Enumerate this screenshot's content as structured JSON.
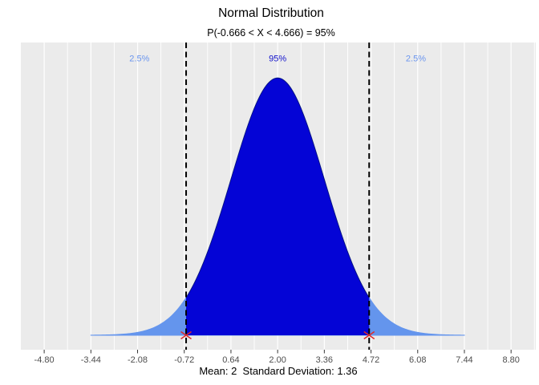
{
  "title": "Normal Distribution",
  "subtitle": "P(-0.666 < X < 4.666) = 95%",
  "x_axis_title": "Mean: 2  Standard Deviation: 1.36",
  "chart_data": {
    "type": "area",
    "curve": "normal-density",
    "mean": 2,
    "sd": 1.36,
    "shade_lower": -0.666,
    "shade_upper": 4.666,
    "shade_probability": 0.95,
    "tail_probability_each": 0.025,
    "curve_x_range": [
      -3.44,
      7.44
    ],
    "xlim": [
      -5.48,
      9.52
    ],
    "ylim": [
      -0.0165,
      0.3337
    ],
    "x_ticks": [
      -4.8,
      -3.44,
      -2.08,
      -0.72,
      0.64,
      2.0,
      3.36,
      4.72,
      6.08,
      7.44,
      8.8
    ],
    "x_tick_labels": [
      "-4.80",
      "-3.44",
      "-2.08",
      "-0.72",
      "0.64",
      "2.00",
      "3.36",
      "4.72",
      "6.08",
      "7.44",
      "8.80"
    ],
    "grid": {
      "vertical_major": true,
      "vertical_minor": true,
      "horizontal": false
    },
    "legend": "none",
    "annotations": [
      {
        "role": "left-tail",
        "text": "2.5%",
        "x": -2.026,
        "y": 0.316,
        "color": "#6C96EE"
      },
      {
        "role": "center",
        "text": "95%",
        "x": 2.0,
        "y": 0.316,
        "color": "#1414CC"
      },
      {
        "role": "right-tail",
        "text": "2.5%",
        "x": 6.026,
        "y": 0.316,
        "color": "#6C96EE"
      }
    ],
    "colors": {
      "center_fill": "#0404D6",
      "tail_fill": "#6495ED",
      "panel_bg": "#EBEBEB",
      "gridline": "#FFFFFF",
      "cutoff_line": "#000000",
      "x_mark": "#DF2929",
      "tick_mark": "#333333",
      "tick_label": "#4D4D4D",
      "curve_outline": "#00003C"
    }
  }
}
